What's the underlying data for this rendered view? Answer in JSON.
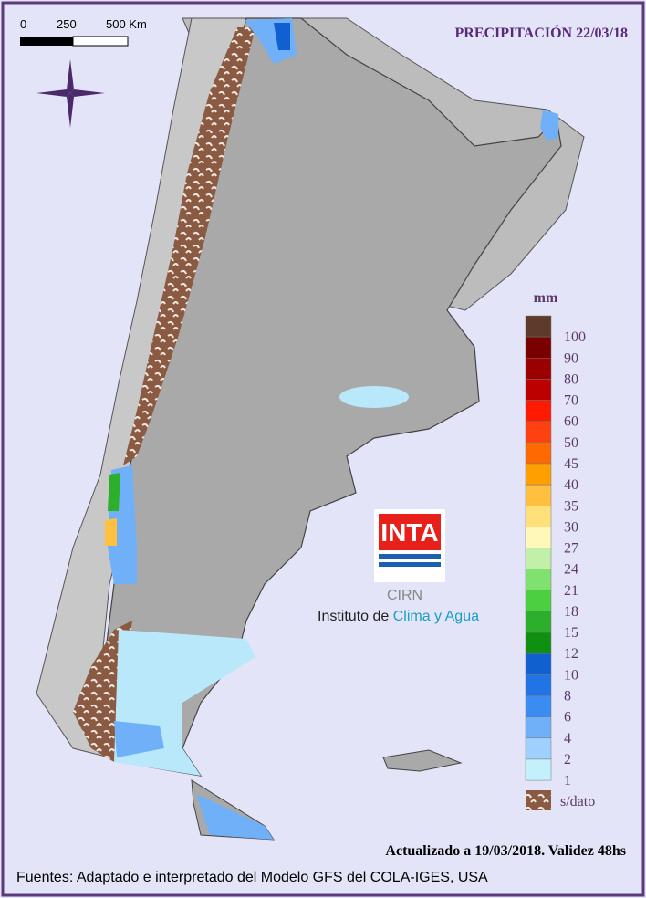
{
  "header": {
    "title": "PRECIPITACIÓN 22/03/18"
  },
  "scale_bar": {
    "labels": [
      "0",
      "250",
      "500 Km"
    ]
  },
  "legend": {
    "title": "mm",
    "items": [
      {
        "label": "100",
        "color": "#5e3a2c"
      },
      {
        "label": "90",
        "color": "#7a0000"
      },
      {
        "label": "80",
        "color": "#9a0000"
      },
      {
        "label": "70",
        "color": "#bc0000"
      },
      {
        "label": "60",
        "color": "#ff1a00"
      },
      {
        "label": "50",
        "color": "#ff4010"
      },
      {
        "label": "45",
        "color": "#ff6a00"
      },
      {
        "label": "40",
        "color": "#ffa000"
      },
      {
        "label": "35",
        "color": "#ffc040"
      },
      {
        "label": "30",
        "color": "#ffe07a"
      },
      {
        "label": "27",
        "color": "#fff8b8"
      },
      {
        "label": "24",
        "color": "#c2f0a8"
      },
      {
        "label": "21",
        "color": "#80e070"
      },
      {
        "label": "18",
        "color": "#4cd040"
      },
      {
        "label": "15",
        "color": "#2cb02c"
      },
      {
        "label": "12",
        "color": "#109010"
      },
      {
        "label": "10",
        "color": "#1060d0"
      },
      {
        "label": "8",
        "color": "#2074e6"
      },
      {
        "label": "6",
        "color": "#3a8cf0"
      },
      {
        "label": "4",
        "color": "#70b0f8"
      },
      {
        "label": "2",
        "color": "#a0d0ff"
      },
      {
        "label": "1",
        "color": "#c4f0fc"
      }
    ],
    "no_data": "s/dato"
  },
  "logo": {
    "brand": "INTA",
    "center": "CIRN",
    "institute": "Instituto de ",
    "highlight": "Clima y Agua"
  },
  "footer": {
    "updated": "Actualizado a 19/03/2018. Validez 48hs",
    "sources": "Fuentes: Adaptado e interpretado del Modelo GFS del COLA-IGES, USA"
  }
}
